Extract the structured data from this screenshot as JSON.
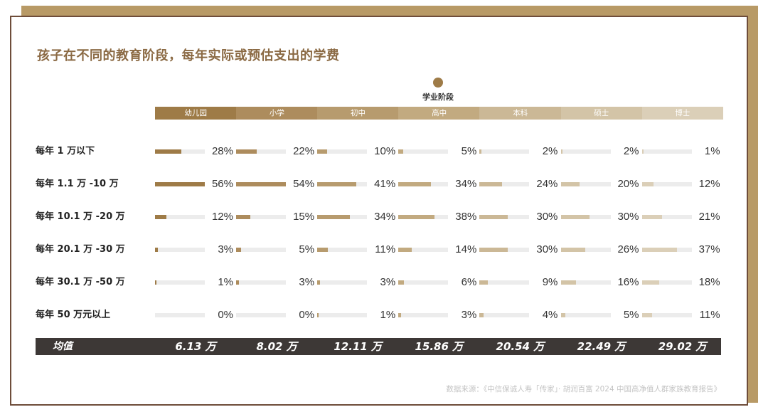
{
  "title": "孩子在不同的教育阶段，每年实际或预估支出的学费",
  "legend": {
    "label": "学业阶段"
  },
  "colors": {
    "shadow": "#b89a66",
    "border": "#6e4d3a",
    "title": "#8b6a44",
    "track": "#ececec",
    "avg_bg": "#3d3836",
    "stages": [
      "#9e7b47",
      "#ad8c5d",
      "#b79b6e",
      "#c2aa80",
      "#cbb896",
      "#d3c4a7",
      "#dbcfb8"
    ]
  },
  "chart_data": {
    "type": "bar",
    "title": "孩子在不同的教育阶段，每年实际或预估支出的学费",
    "series_label": "学业阶段",
    "stages": [
      "幼儿园",
      "小学",
      "初中",
      "高中",
      "本科",
      "硕士",
      "博士"
    ],
    "categories": [
      "每年 1 万以下",
      "每年 1.1 万 -10 万",
      "每年 10.1 万 -20 万",
      "每年 20.1 万 -30 万",
      "每年 30.1 万 -50 万",
      "每年 50 万元以上"
    ],
    "values": [
      [
        28,
        22,
        10,
        5,
        2,
        2,
        1
      ],
      [
        56,
        54,
        41,
        34,
        24,
        20,
        12
      ],
      [
        12,
        15,
        34,
        38,
        30,
        30,
        21
      ],
      [
        3,
        5,
        11,
        14,
        30,
        26,
        37
      ],
      [
        1,
        3,
        3,
        6,
        9,
        16,
        18
      ],
      [
        0,
        0,
        1,
        3,
        4,
        5,
        11
      ]
    ],
    "value_labels": [
      [
        "28%",
        "22%",
        "10%",
        "5%",
        "2%",
        "2%",
        "1%"
      ],
      [
        "56%",
        "54%",
        "41%",
        "34%",
        "24%",
        "20%",
        "12%"
      ],
      [
        "12%",
        "15%",
        "34%",
        "38%",
        "30%",
        "30%",
        "21%"
      ],
      [
        "3%",
        "5%",
        "11%",
        "14%",
        "30%",
        "26%",
        "37%"
      ],
      [
        "1%",
        "3%",
        "3%",
        "6%",
        "9%",
        "16%",
        "18%"
      ],
      [
        "0%",
        "0%",
        "1%",
        "3%",
        "4%",
        "5%",
        "11%"
      ]
    ],
    "unit": "%",
    "ylim": [
      0,
      100
    ],
    "average_label": "均值",
    "averages": [
      "6.13 万",
      "8.02 万",
      "12.11 万",
      "15.86 万",
      "20.54 万",
      "22.49 万",
      "29.02 万"
    ]
  },
  "source": "数据来源：《中信保诚人寿「传家」· 胡润百富 2024 中国高净值人群家族教育报告》"
}
